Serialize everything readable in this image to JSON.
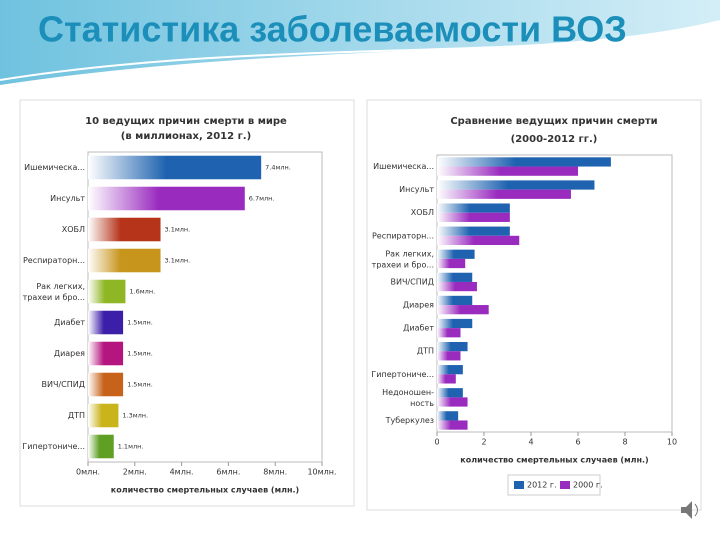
{
  "slide": {
    "title": "Статистика заболеваемости ВОЗ"
  },
  "chart_data": [
    {
      "type": "hbar",
      "title": "10 ведущих причин смерти в мире",
      "subtitle": "(в миллионах, 2012 г.)",
      "x_label": "количество смертельных случаев (млн.)",
      "categories": [
        "Ишемическа...",
        "Инсульт",
        "ХОБЛ",
        "Респираторн...",
        "Рак легких,\nтрахеи и бро...",
        "Диабет",
        "Диарея",
        "ВИЧ/СПИД",
        "ДТП",
        "Гипертониче..."
      ],
      "values": [
        7.4,
        6.7,
        3.1,
        3.1,
        1.6,
        1.5,
        1.5,
        1.5,
        1.3,
        1.1
      ],
      "value_labels": [
        "7.4млн.",
        "6.7млн.",
        "3.1млн.",
        "3.1млн.",
        "1.6млн.",
        "1.5млн.",
        "1.5млн.",
        "1.5млн.",
        "1.3млн.",
        "1.1млн."
      ],
      "colors": [
        "#1f63b0",
        "#9a2bbf",
        "#b5341a",
        "#c7951c",
        "#8fb624",
        "#3b1fa8",
        "#b5157f",
        "#c7621a",
        "#c9b41c",
        "#5e9f24"
      ],
      "xlim": [
        0,
        10
      ],
      "xticks": [
        {
          "value": 0,
          "label": "0млн."
        },
        {
          "value": 2,
          "label": "2млн."
        },
        {
          "value": 4,
          "label": "4млн."
        },
        {
          "value": 6,
          "label": "6млн."
        },
        {
          "value": 8,
          "label": "8млн."
        },
        {
          "value": 10,
          "label": "10млн."
        }
      ],
      "grid": false
    },
    {
      "type": "grouped-hbar",
      "title": "Сравнение ведущих причин смерти",
      "subtitle": "(2000-2012 гг.)",
      "x_label": "количество смертельных случаев (млн.)",
      "categories": [
        "Ишемическа...",
        "Инсульт",
        "ХОБЛ",
        "Респираторн...",
        "Рак легких,\nтрахеи и бро...",
        "ВИЧ/СПИД",
        "Диарея",
        "Диабет",
        "ДТП",
        "Гипертониче...",
        "Недоношен-\nность",
        "Туберкулез"
      ],
      "series": [
        {
          "name": "2012 г.",
          "color": "#1f63b0",
          "values": [
            7.4,
            6.7,
            3.1,
            3.1,
            1.6,
            1.5,
            1.5,
            1.5,
            1.3,
            1.1,
            1.1,
            0.9
          ]
        },
        {
          "name": "2000 г.",
          "color": "#9a2bbf",
          "values": [
            6.0,
            5.7,
            3.1,
            3.5,
            1.2,
            1.7,
            2.2,
            1.0,
            1.0,
            0.8,
            1.3,
            1.3
          ]
        }
      ],
      "xlim": [
        0,
        10
      ],
      "xticks": [
        0,
        2,
        4,
        6,
        8,
        10
      ],
      "grid": false,
      "legend": "bottom"
    }
  ]
}
